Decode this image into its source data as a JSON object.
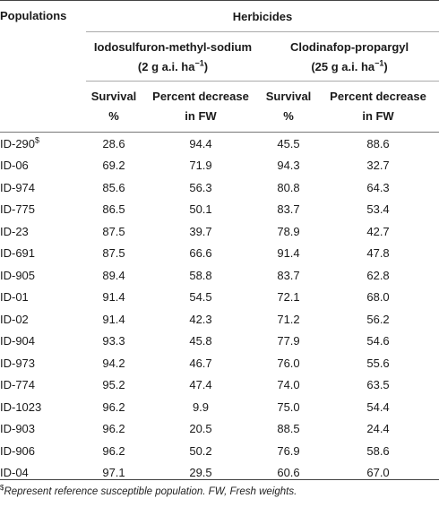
{
  "table": {
    "populations_header": "Populations",
    "herbicides_header": "Herbicides",
    "herbicide_1": {
      "name": "Iodosulfuron-methyl-sodium",
      "dose": "(2 g a.i. ha",
      "dose_exp": "−1",
      "dose_close": ")"
    },
    "herbicide_2": {
      "name": "Clodinafop-propargyl",
      "dose": "(25 g a.i. ha",
      "dose_exp": "−1",
      "dose_close": ")"
    },
    "col_survival_line1": "Survival",
    "col_survival_line2": "%",
    "col_decrease_line1": "Percent decrease",
    "col_decrease_line2": "in FW",
    "rows": [
      {
        "pop": "ID-290",
        "sup": "$",
        "s1": "28.6",
        "d1": "94.4",
        "s2": "45.5",
        "d2": "88.6"
      },
      {
        "pop": "ID-06",
        "sup": "",
        "s1": "69.2",
        "d1": "71.9",
        "s2": "94.3",
        "d2": "32.7"
      },
      {
        "pop": "ID-974",
        "sup": "",
        "s1": "85.6",
        "d1": "56.3",
        "s2": "80.8",
        "d2": "64.3"
      },
      {
        "pop": "ID-775",
        "sup": "",
        "s1": "86.5",
        "d1": "50.1",
        "s2": "83.7",
        "d2": "53.4"
      },
      {
        "pop": "ID-23",
        "sup": "",
        "s1": "87.5",
        "d1": "39.7",
        "s2": "78.9",
        "d2": "42.7"
      },
      {
        "pop": "ID-691",
        "sup": "",
        "s1": "87.5",
        "d1": "66.6",
        "s2": "91.4",
        "d2": "47.8"
      },
      {
        "pop": "ID-905",
        "sup": "",
        "s1": "89.4",
        "d1": "58.8",
        "s2": "83.7",
        "d2": "62.8"
      },
      {
        "pop": "ID-01",
        "sup": "",
        "s1": "91.4",
        "d1": "54.5",
        "s2": "72.1",
        "d2": "68.0"
      },
      {
        "pop": "ID-02",
        "sup": "",
        "s1": "91.4",
        "d1": "42.3",
        "s2": "71.2",
        "d2": "56.2"
      },
      {
        "pop": "ID-904",
        "sup": "",
        "s1": "93.3",
        "d1": "45.8",
        "s2": "77.9",
        "d2": "54.6"
      },
      {
        "pop": "ID-973",
        "sup": "",
        "s1": "94.2",
        "d1": "46.7",
        "s2": "76.0",
        "d2": "55.6"
      },
      {
        "pop": "ID-774",
        "sup": "",
        "s1": "95.2",
        "d1": "47.4",
        "s2": "74.0",
        "d2": "63.5"
      },
      {
        "pop": "ID-1023",
        "sup": "",
        "s1": "96.2",
        "d1": "9.9",
        "s2": "75.0",
        "d2": "54.4"
      },
      {
        "pop": "ID-903",
        "sup": "",
        "s1": "96.2",
        "d1": "20.5",
        "s2": "88.5",
        "d2": "24.4"
      },
      {
        "pop": "ID-906",
        "sup": "",
        "s1": "96.2",
        "d1": "50.2",
        "s2": "76.9",
        "d2": "58.6"
      },
      {
        "pop": "ID-04",
        "sup": "",
        "s1": "97.1",
        "d1": "29.5",
        "s2": "60.6",
        "d2": "67.0"
      }
    ]
  },
  "footnote": {
    "marker": "$",
    "text": "Represent reference susceptible population. FW, Fresh weights."
  }
}
